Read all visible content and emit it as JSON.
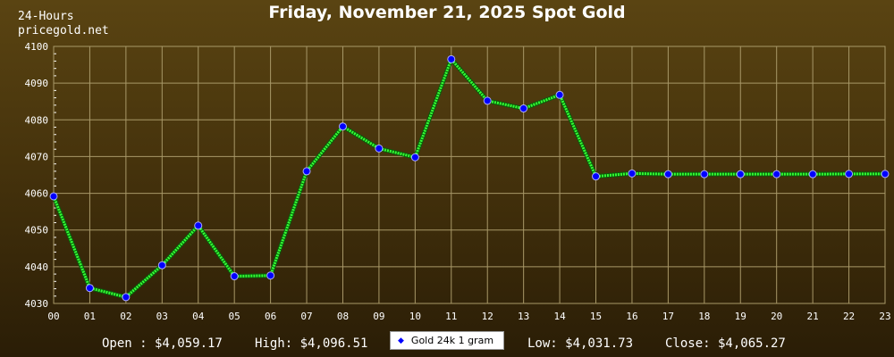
{
  "header": {
    "corner_line1": "24-Hours",
    "corner_line2": "pricegold.net"
  },
  "footer": {
    "open": "Open : $4,059.17",
    "high": "High: $4,096.51",
    "low": "Low: $4,031.73",
    "close": "Close: $4,065.27"
  },
  "colors": {
    "line": "#33ff33",
    "marker": "#0000ff",
    "grid": "#a89868"
  },
  "chart_data": {
    "type": "line",
    "title": "Friday, November 21, 2025 Spot Gold",
    "xlabel": "",
    "ylabel": "",
    "categories": [
      "00",
      "01",
      "02",
      "03",
      "04",
      "05",
      "06",
      "07",
      "08",
      "09",
      "10",
      "11",
      "12",
      "13",
      "14",
      "15",
      "16",
      "17",
      "18",
      "19",
      "20",
      "21",
      "22",
      "23"
    ],
    "yticks": [
      4030,
      4040,
      4050,
      4060,
      4070,
      4080,
      4090,
      4100
    ],
    "ylim": [
      4030,
      4100
    ],
    "grid": true,
    "legend_position": "bottom-center",
    "series": [
      {
        "name": "Gold 24k 1 gram",
        "values": [
          4059.17,
          4034.2,
          4031.73,
          4040.4,
          4051.2,
          4037.4,
          4037.6,
          4066.0,
          4078.2,
          4072.2,
          4069.8,
          4096.51,
          4085.2,
          4083.1,
          4086.8,
          4064.6,
          4065.4,
          4065.2,
          4065.2,
          4065.2,
          4065.2,
          4065.2,
          4065.27,
          4065.27
        ]
      }
    ]
  }
}
